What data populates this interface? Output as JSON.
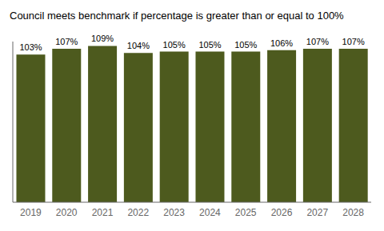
{
  "chart_data": {
    "type": "bar",
    "title": "Council meets benchmark if percentage is greater than or equal to 100%",
    "categories": [
      "2019",
      "2020",
      "2021",
      "2022",
      "2023",
      "2024",
      "2025",
      "2026",
      "2027",
      "2028"
    ],
    "values": [
      103,
      107,
      109,
      104,
      105,
      105,
      105,
      106,
      107,
      107
    ],
    "value_labels": [
      "103%",
      "107%",
      "109%",
      "104%",
      "105%",
      "105%",
      "105%",
      "106%",
      "107%",
      "107%"
    ],
    "data_labels": true,
    "color": "#4d5a1e",
    "ylim": [
      0,
      112
    ],
    "grid": false,
    "tick_labels": "x"
  }
}
